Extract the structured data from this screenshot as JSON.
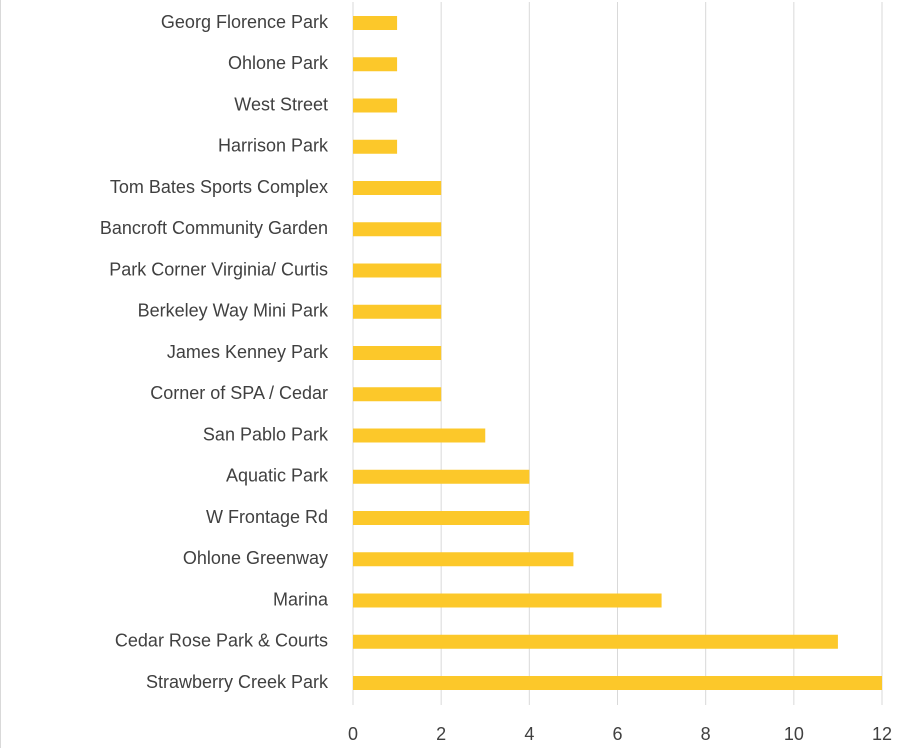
{
  "chart_data": {
    "type": "bar",
    "orientation": "horizontal",
    "categories": [
      "Georg Florence Park",
      "Ohlone Park",
      "West Street",
      "Harrison Park",
      "Tom Bates Sports Complex",
      "Bancroft Community Garden",
      "Park Corner Virginia/ Curtis",
      "Berkeley Way Mini Park",
      "James Kenney Park",
      "Corner of SPA / Cedar",
      "San Pablo Park",
      "Aquatic Park",
      "W Frontage Rd",
      "Ohlone Greenway",
      "Marina",
      "Cedar Rose Park & Courts",
      "Strawberry Creek Park"
    ],
    "values": [
      1,
      1,
      1,
      1,
      2,
      2,
      2,
      2,
      2,
      2,
      3,
      4,
      4,
      5,
      7,
      11,
      12
    ],
    "color": "#fcc82a",
    "xlim": [
      0,
      12
    ],
    "xticks": [
      0,
      2,
      4,
      6,
      8,
      10,
      12
    ],
    "grid": true
  }
}
